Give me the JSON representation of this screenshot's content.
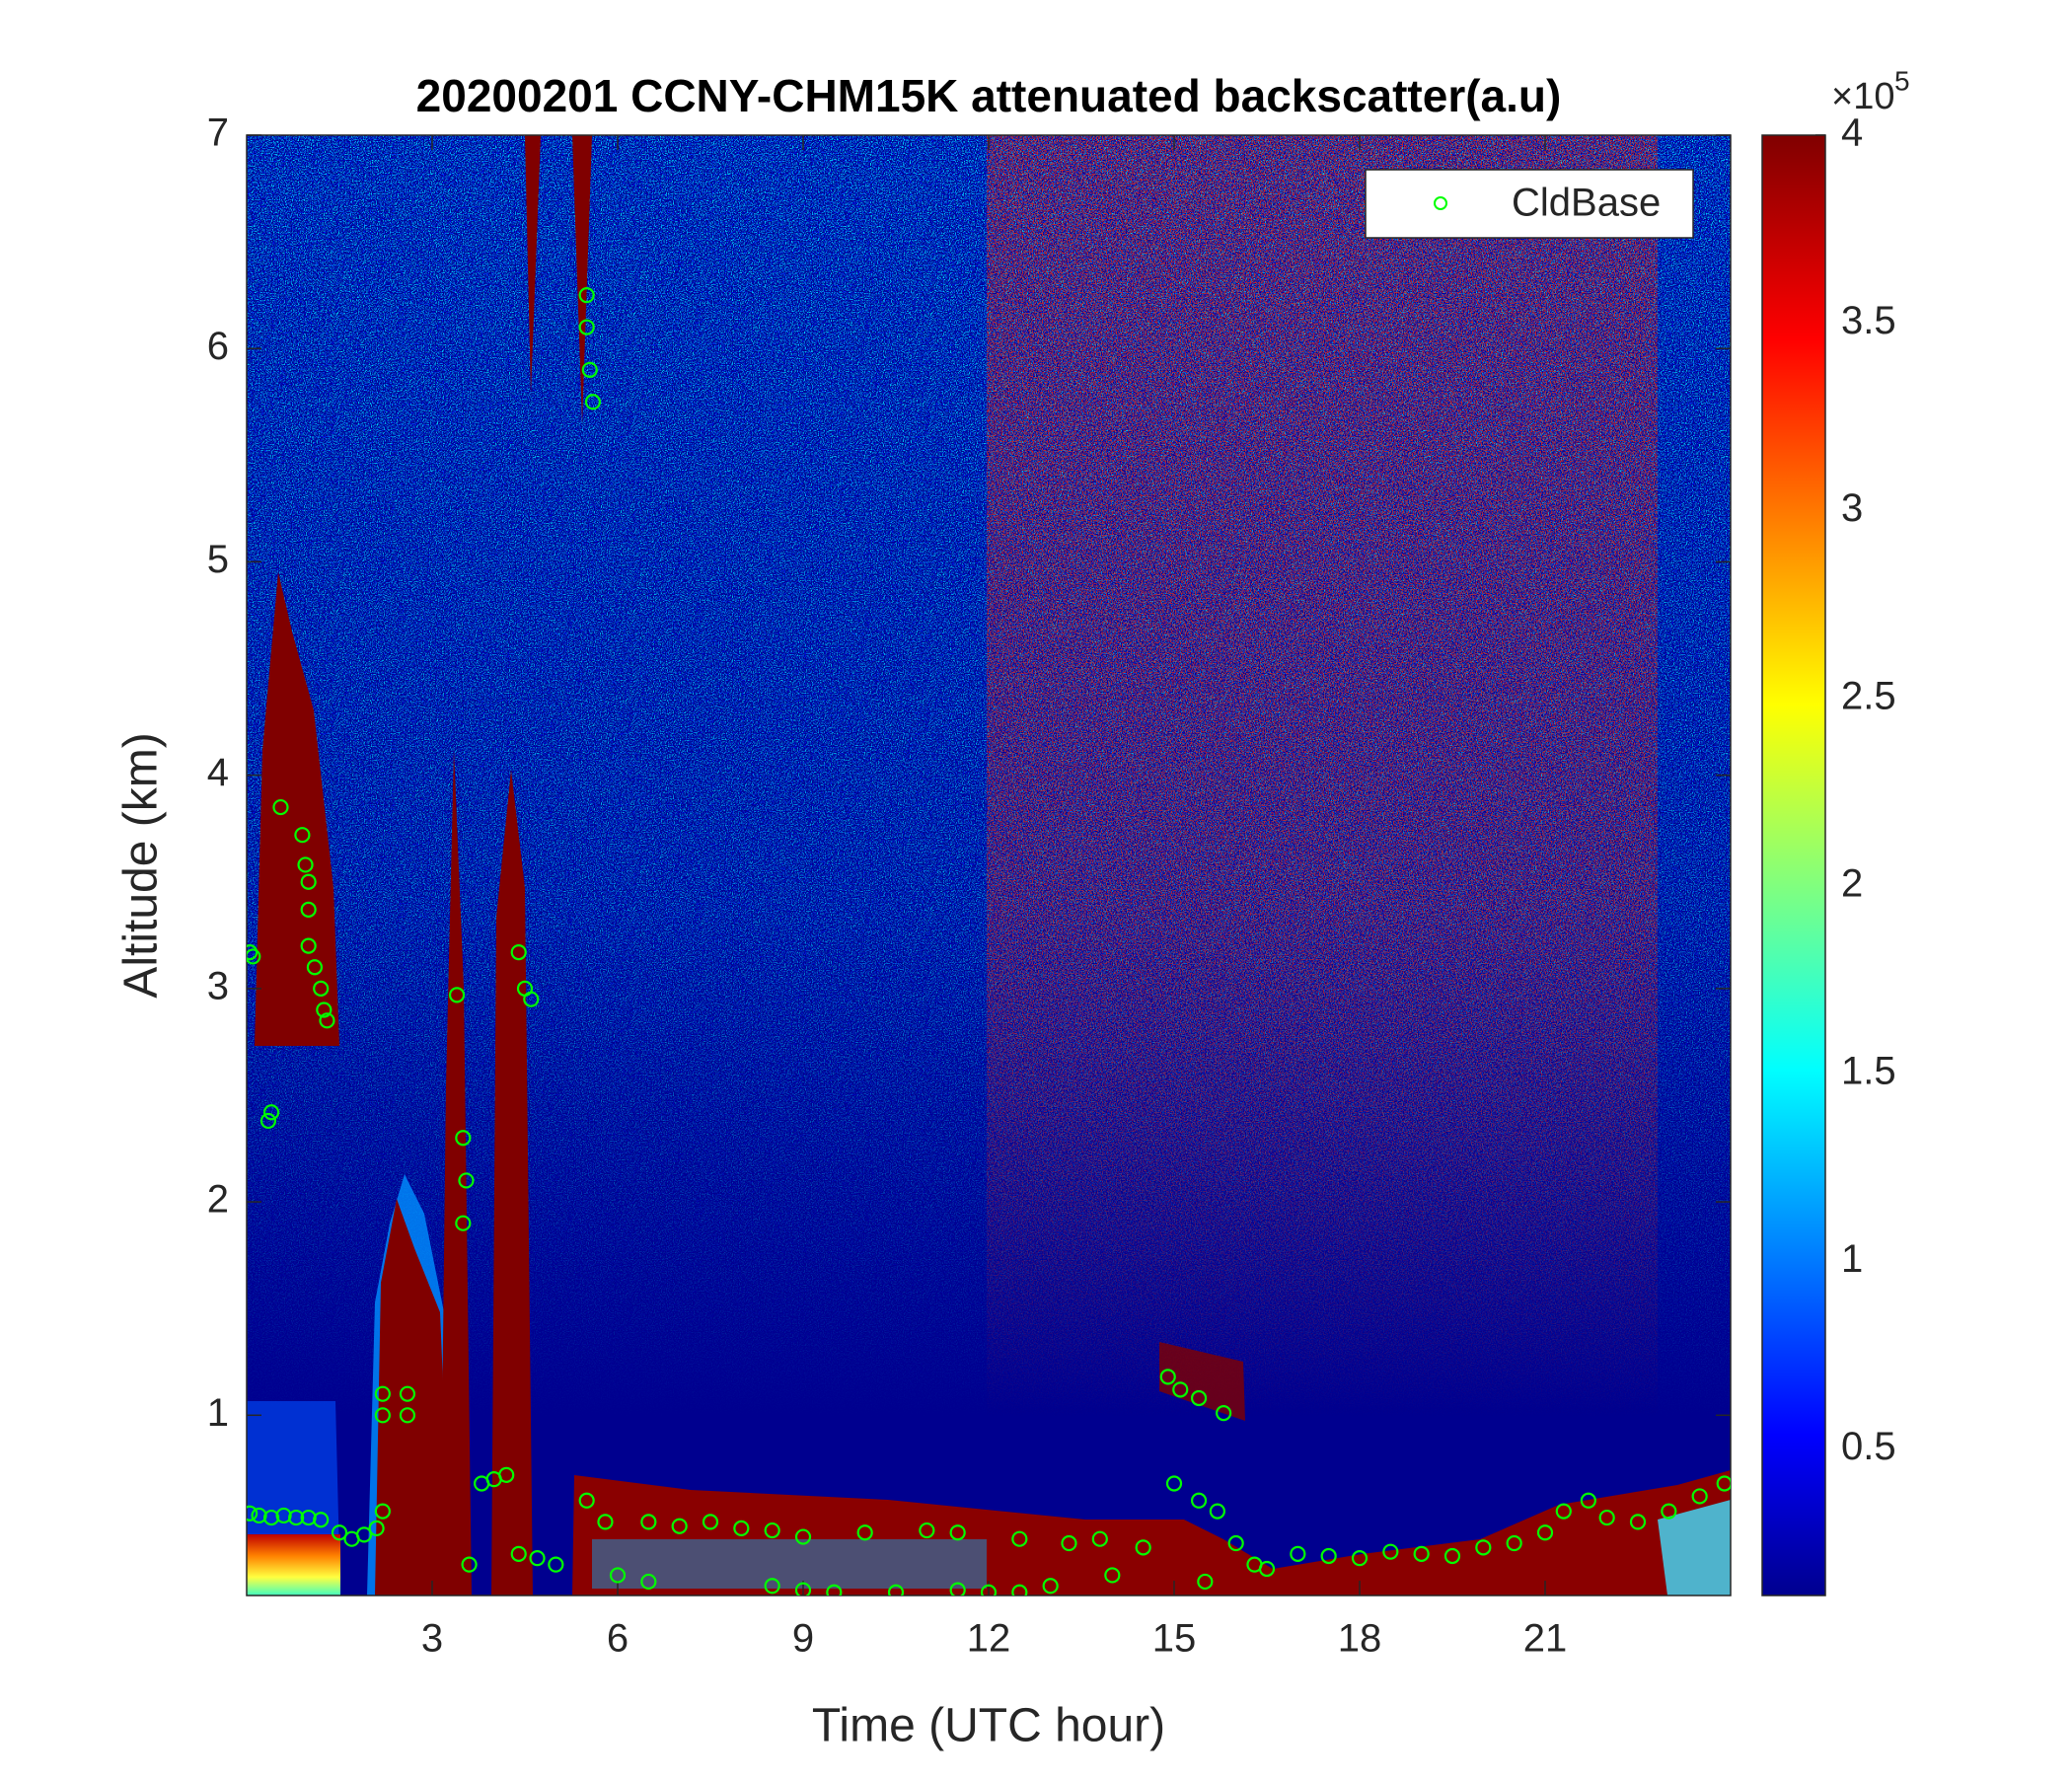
{
  "chart_data": {
    "type": "scatter",
    "title": "20200201 CCNY-CHM15K attenuated backscatter(a.u)",
    "x_label": "Time (UTC hour)",
    "y_label": "Altitude (km)",
    "xlim": [
      0,
      24
    ],
    "xticks": [
      3,
      6,
      9,
      12,
      15,
      18,
      21
    ],
    "ylim": [
      0.155,
      7
    ],
    "yticks": [
      1,
      2,
      3,
      4,
      5,
      6,
      7
    ],
    "legend": "upper right",
    "colorbar": {
      "colormap": "jet",
      "clim": [
        0.11,
        4
      ],
      "ticks": [
        0.5,
        1,
        1.5,
        2,
        2.5,
        3,
        3.5,
        4
      ],
      "multiplier": {
        "base": "×10",
        "exponent": "5"
      }
    },
    "series": [
      {
        "name": "CldBase",
        "color": "#00ff00",
        "x": [
          0.05,
          0.1,
          0.05,
          0.2,
          0.4,
          0.6,
          0.8,
          1,
          1.2,
          0.55,
          0.9,
          0.95,
          1.0,
          1.0,
          1.0,
          1.1,
          1.2,
          1.25,
          1.3,
          0.4,
          0.35,
          1.5,
          1.7,
          1.9,
          2.1,
          2.2,
          2.2,
          2.2,
          2.6,
          2.6,
          3.4,
          3.5,
          3.55,
          3.5,
          3.6,
          3.8,
          4.0,
          4.2,
          4.4,
          4.5,
          4.6,
          4.4,
          4.7,
          5.0,
          5.5,
          5.5,
          5.55,
          5.6,
          5.5,
          5.8,
          6,
          6.5,
          6.5,
          7,
          7.5,
          8,
          8.5,
          8.5,
          9,
          9.5,
          9,
          10,
          10.5,
          11,
          11.5,
          11.5,
          12,
          12.5,
          12.5,
          13,
          13.3,
          13.8,
          14,
          14.5,
          14.9,
          15.1,
          15.4,
          15.8,
          15,
          15.4,
          15.7,
          15.5,
          16,
          16.3,
          16.5,
          17,
          17.5,
          18,
          18.5,
          19,
          19.5,
          20,
          20.5,
          21,
          21.3,
          21.7,
          22,
          22.5,
          23,
          23.5,
          23.9
        ],
        "values": [
          3.17,
          3.15,
          0.54,
          0.53,
          0.52,
          0.53,
          0.52,
          0.52,
          0.51,
          3.85,
          3.72,
          3.58,
          3.5,
          3.37,
          3.2,
          3.1,
          3.0,
          2.9,
          2.85,
          2.42,
          2.38,
          0.45,
          0.42,
          0.44,
          0.47,
          0.55,
          1.1,
          1.0,
          1.1,
          1.0,
          2.97,
          2.3,
          2.1,
          1.9,
          0.3,
          0.68,
          0.7,
          0.72,
          3.17,
          3.0,
          2.95,
          0.35,
          0.33,
          0.3,
          6.25,
          6.1,
          5.9,
          5.75,
          0.6,
          0.5,
          0.25,
          0.22,
          0.5,
          0.48,
          0.5,
          0.47,
          0.46,
          0.2,
          0.18,
          0.17,
          0.43,
          0.45,
          0.17,
          0.46,
          0.45,
          0.18,
          0.17,
          0.17,
          0.42,
          0.2,
          0.4,
          0.42,
          0.25,
          0.38,
          1.18,
          1.12,
          1.08,
          1.01,
          0.68,
          0.6,
          0.55,
          0.22,
          0.4,
          0.3,
          0.28,
          0.35,
          0.34,
          0.33,
          0.36,
          0.35,
          0.34,
          0.38,
          0.4,
          0.45,
          0.55,
          0.6,
          0.52,
          0.5,
          0.55,
          0.62,
          0.68
        ]
      }
    ]
  }
}
